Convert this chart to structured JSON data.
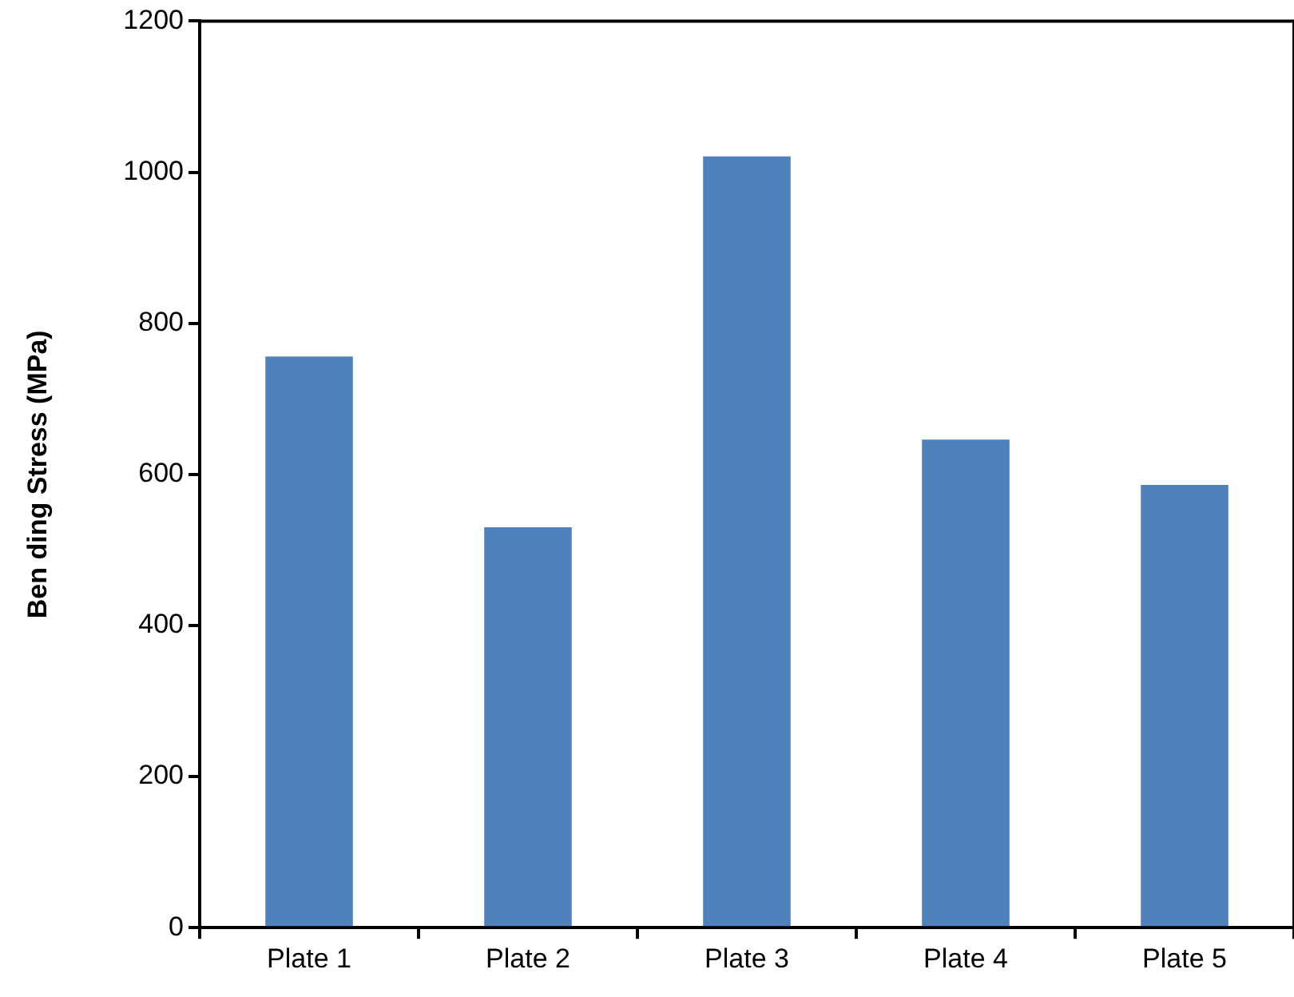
{
  "chart_data": {
    "type": "bar",
    "ylabel": "Ben ding Stress (MPa)",
    "categories": [
      "Plate 1",
      "Plate 2",
      "Plate 3",
      "Plate 4",
      "Plate 5"
    ],
    "values": [
      756,
      530,
      1021,
      646,
      586
    ],
    "color": "#4f81bd",
    "ylim": [
      0,
      1200
    ],
    "yticks": [
      0,
      200,
      400,
      600,
      800,
      1000,
      1200
    ],
    "grid": false
  }
}
